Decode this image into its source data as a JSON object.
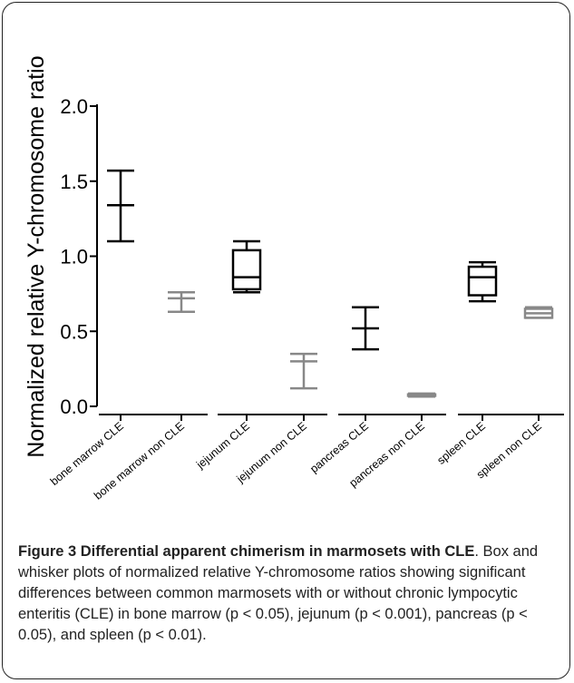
{
  "chart_data": {
    "type": "boxplot",
    "ylabel": "Normalized relative Y-chromosome ratio",
    "ylim": [
      0,
      2.0
    ],
    "yticks": [
      0.0,
      0.5,
      1.0,
      1.5,
      2.0
    ],
    "ytick_labels": [
      "0.0",
      "0.5",
      "1.0",
      "1.5",
      "2.0"
    ],
    "grid": false,
    "categories": [
      "bone marrow CLE",
      "bone marrow non CLE",
      "jejunum CLE",
      "jejunum non CLE",
      "pancreas CLE",
      "pancreas non CLE",
      "spleen CLE",
      "spleen non CLE"
    ],
    "boxes": [
      {
        "label": "bone marrow CLE",
        "min": 1.1,
        "q1": 1.34,
        "median": 1.34,
        "q3": 1.34,
        "max": 1.57,
        "color": "#000000"
      },
      {
        "label": "bone marrow non CLE",
        "min": 0.63,
        "q1": 0.72,
        "median": 0.72,
        "q3": 0.72,
        "max": 0.76,
        "color": "#888888"
      },
      {
        "label": "jejunum CLE",
        "min": 0.76,
        "q1": 0.78,
        "median": 0.86,
        "q3": 1.04,
        "max": 1.1,
        "color": "#000000"
      },
      {
        "label": "jejunum non CLE",
        "min": 0.12,
        "q1": 0.3,
        "median": 0.3,
        "q3": 0.3,
        "max": 0.35,
        "color": "#888888"
      },
      {
        "label": "pancreas CLE",
        "min": 0.38,
        "q1": 0.52,
        "median": 0.52,
        "q3": 0.52,
        "max": 0.66,
        "color": "#000000"
      },
      {
        "label": "pancreas non CLE",
        "min": 0.065,
        "q1": 0.07,
        "median": 0.075,
        "q3": 0.08,
        "max": 0.085,
        "color": "#888888"
      },
      {
        "label": "spleen CLE",
        "min": 0.7,
        "q1": 0.74,
        "median": 0.86,
        "q3": 0.93,
        "max": 0.96,
        "color": "#000000"
      },
      {
        "label": "spleen non CLE",
        "min": 0.59,
        "q1": 0.59,
        "median": 0.62,
        "q3": 0.65,
        "max": 0.66,
        "color": "#888888"
      }
    ]
  },
  "caption": {
    "title": "Figure 3 Differential apparent chimerism in marmosets with CLE",
    "body": ". Box and whisker plots of normalized relative Y-chromosome ratios showing significant differences between common marmosets with or without chronic lympocytic enteritis (CLE) in bone marrow (p < 0.05), jejunum (p < 0.001), pancreas (p < 0.05), and spleen (p < 0.01)."
  }
}
